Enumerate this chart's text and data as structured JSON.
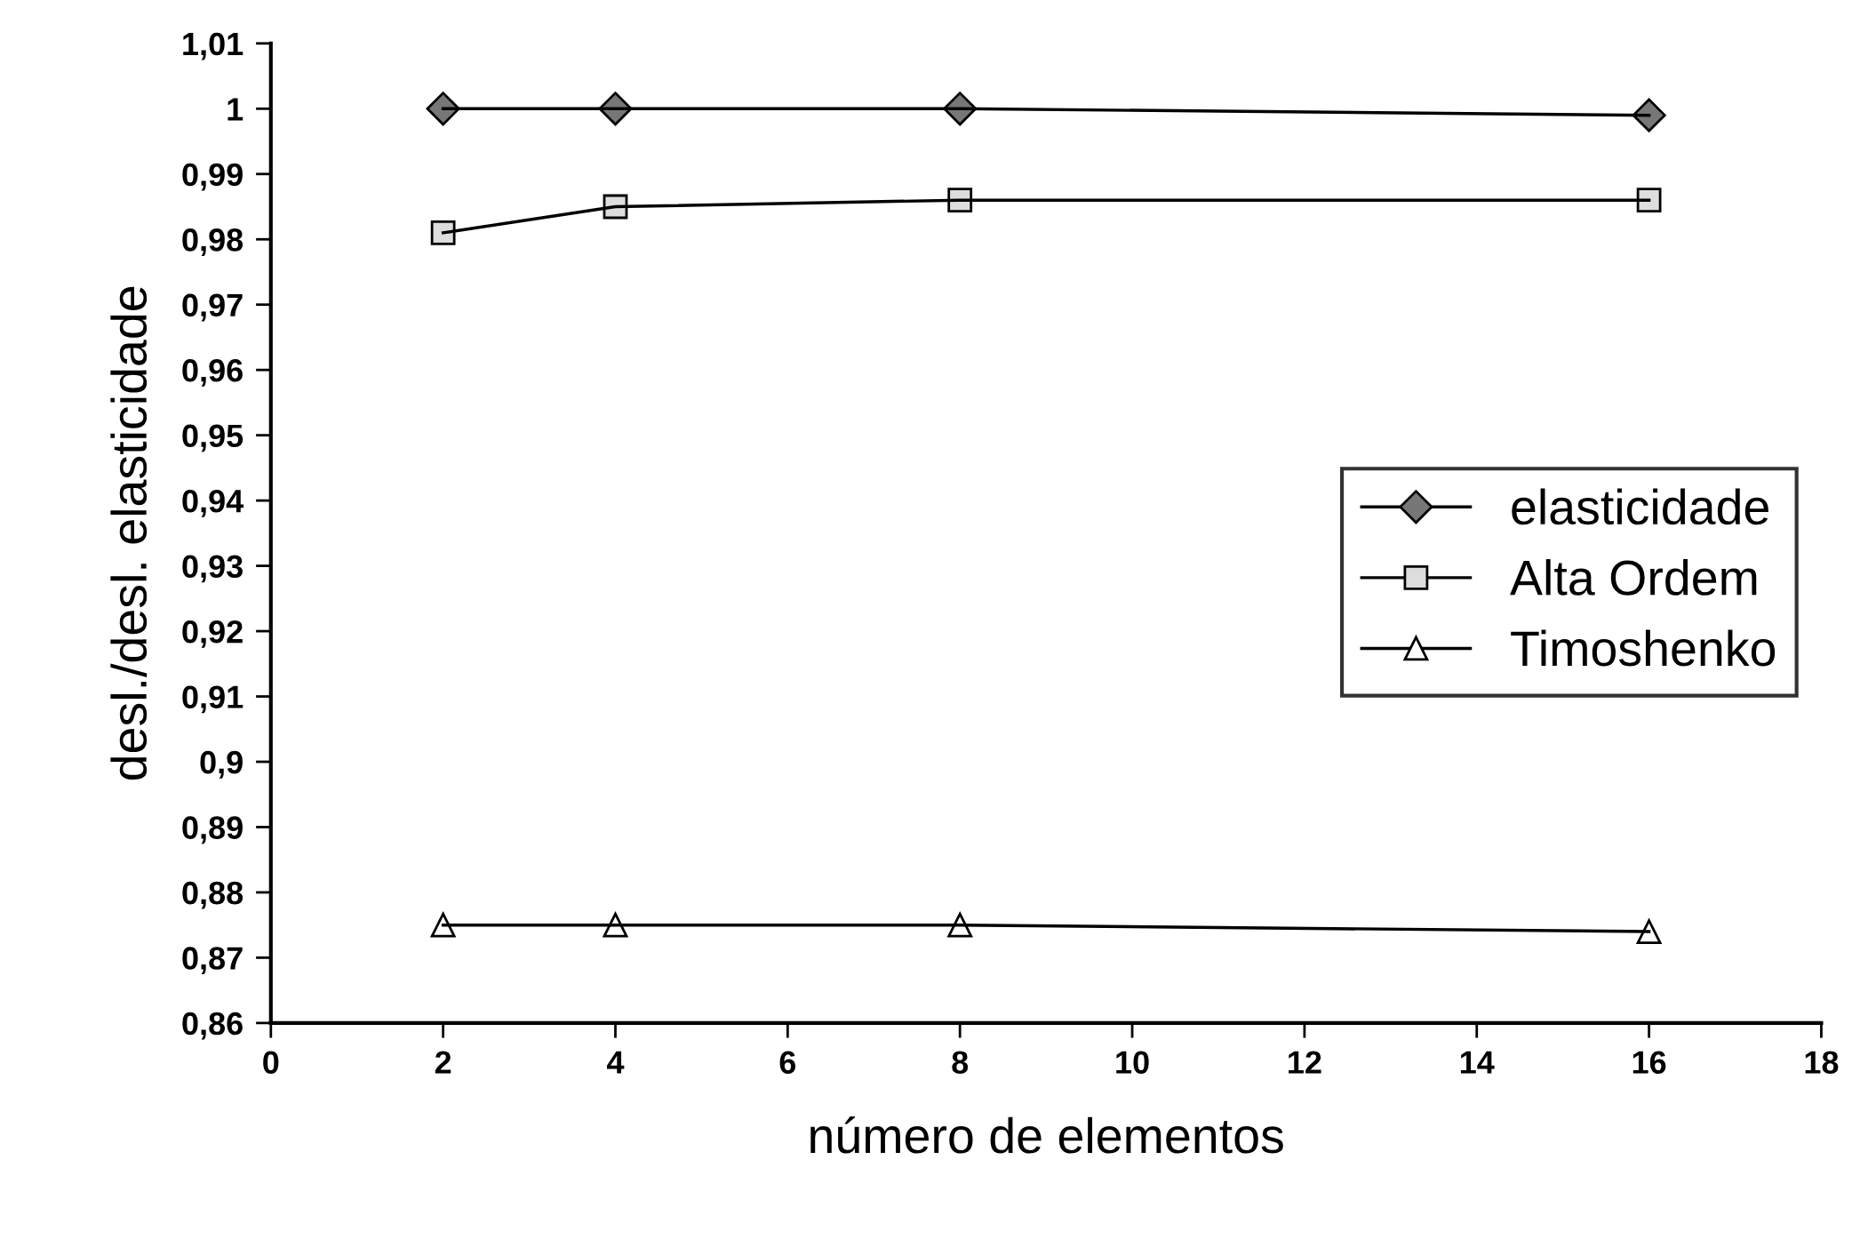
{
  "chart_data": {
    "type": "line",
    "xlabel": "número de elementos",
    "ylabel": "desl./desl. elasticidade",
    "x": [
      2,
      4,
      8,
      16
    ],
    "series": [
      {
        "name": "elasticidade",
        "color": "#000000",
        "marker": "diamond",
        "values": [
          1.0,
          1.0,
          1.0,
          0.999
        ]
      },
      {
        "name": "Alta Ordem",
        "color": "#000000",
        "marker": "square",
        "values": [
          0.981,
          0.985,
          0.986,
          0.986
        ]
      },
      {
        "name": "Timoshenko",
        "color": "#000000",
        "marker": "triangle",
        "values": [
          0.875,
          0.875,
          0.875,
          0.874
        ]
      }
    ],
    "xlim": [
      0,
      18
    ],
    "xticks": [
      0,
      2,
      4,
      6,
      8,
      10,
      12,
      14,
      16,
      18
    ],
    "ylim": [
      0.86,
      1.01
    ],
    "yticks": [
      {
        "value": 0.86,
        "label": "0,86"
      },
      {
        "value": 0.87,
        "label": "0,87"
      },
      {
        "value": 0.88,
        "label": "0,88"
      },
      {
        "value": 0.89,
        "label": "0,89"
      },
      {
        "value": 0.9,
        "label": "0,9"
      },
      {
        "value": 0.91,
        "label": "0,91"
      },
      {
        "value": 0.92,
        "label": "0,92"
      },
      {
        "value": 0.93,
        "label": "0,93"
      },
      {
        "value": 0.94,
        "label": "0,94"
      },
      {
        "value": 0.95,
        "label": "0,95"
      },
      {
        "value": 0.96,
        "label": "0,96"
      },
      {
        "value": 0.97,
        "label": "0,97"
      },
      {
        "value": 0.98,
        "label": "0,98"
      },
      {
        "value": 0.99,
        "label": "0,99"
      },
      {
        "value": 1.0,
        "label": "1"
      },
      {
        "value": 1.01,
        "label": "1,01"
      }
    ],
    "grid": false,
    "legend": "right",
    "line_style": "solid"
  }
}
